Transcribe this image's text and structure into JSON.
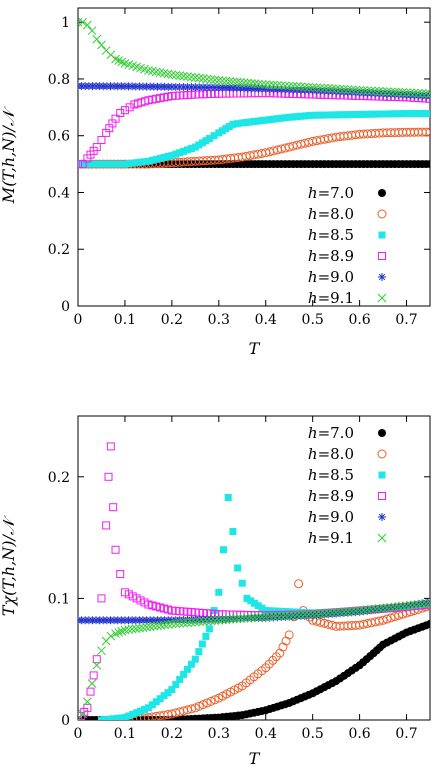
{
  "chart_data": [
    {
      "type": "scatter",
      "xlabel": "T",
      "ylabel": "M(T,h,N)/𝒩",
      "xlim": [
        0,
        0.75
      ],
      "ylim": [
        0,
        1.05
      ],
      "xticks": [
        "0",
        "0.1",
        "0.2",
        "0.3",
        "0.4",
        "0.5",
        "0.6",
        "0.7"
      ],
      "yticks": [
        "0",
        "0.2",
        "0.4",
        "0.6",
        "0.8",
        "1"
      ],
      "xtick_values": [
        0,
        0.1,
        0.2,
        0.3,
        0.4,
        0.5,
        0.6,
        0.7
      ],
      "ytick_values": [
        0,
        0.2,
        0.4,
        0.6,
        0.8,
        1.0
      ],
      "legend_position": "lower-right",
      "series": [
        {
          "name": "h=7.0",
          "h": "h",
          "val": "=7.0",
          "marker": "filled-circle",
          "color": "#000000",
          "points": [
            [
              0,
              0.5
            ],
            [
              0.1,
              0.5
            ],
            [
              0.2,
              0.5
            ],
            [
              0.3,
              0.5
            ],
            [
              0.4,
              0.5
            ],
            [
              0.5,
              0.5
            ],
            [
              0.6,
              0.5
            ],
            [
              0.7,
              0.5
            ],
            [
              0.75,
              0.5
            ]
          ]
        },
        {
          "name": "h=8.0",
          "h": "h",
          "val": "=8.0",
          "marker": "open-circle",
          "color": "#e8602c",
          "points": [
            [
              0,
              0.5
            ],
            [
              0.1,
              0.5
            ],
            [
              0.15,
              0.5
            ],
            [
              0.2,
              0.505
            ],
            [
              0.25,
              0.51
            ],
            [
              0.3,
              0.515
            ],
            [
              0.35,
              0.525
            ],
            [
              0.4,
              0.54
            ],
            [
              0.45,
              0.56
            ],
            [
              0.5,
              0.58
            ],
            [
              0.55,
              0.595
            ],
            [
              0.6,
              0.605
            ],
            [
              0.65,
              0.61
            ],
            [
              0.7,
              0.612
            ],
            [
              0.75,
              0.613
            ]
          ]
        },
        {
          "name": "h=8.5",
          "h": "h",
          "val": "=8.5",
          "marker": "filled-square",
          "color": "#1ce6e6",
          "points": [
            [
              0,
              0.5
            ],
            [
              0.1,
              0.5
            ],
            [
              0.15,
              0.51
            ],
            [
              0.2,
              0.53
            ],
            [
              0.25,
              0.56
            ],
            [
              0.28,
              0.59
            ],
            [
              0.3,
              0.61
            ],
            [
              0.33,
              0.64
            ],
            [
              0.35,
              0.645
            ],
            [
              0.4,
              0.655
            ],
            [
              0.45,
              0.665
            ],
            [
              0.5,
              0.672
            ],
            [
              0.6,
              0.675
            ],
            [
              0.7,
              0.678
            ],
            [
              0.75,
              0.678
            ]
          ]
        },
        {
          "name": "h=8.9",
          "h": "h",
          "val": "=8.9",
          "marker": "open-square",
          "color": "#ee21ee",
          "points": [
            [
              0,
              0.5
            ],
            [
              0.01,
              0.5
            ],
            [
              0.02,
              0.52
            ],
            [
              0.04,
              0.56
            ],
            [
              0.06,
              0.61
            ],
            [
              0.08,
              0.66
            ],
            [
              0.09,
              0.68
            ],
            [
              0.1,
              0.69
            ],
            [
              0.12,
              0.71
            ],
            [
              0.15,
              0.725
            ],
            [
              0.2,
              0.74
            ],
            [
              0.25,
              0.745
            ],
            [
              0.3,
              0.748
            ],
            [
              0.4,
              0.75
            ],
            [
              0.5,
              0.745
            ],
            [
              0.6,
              0.74
            ],
            [
              0.7,
              0.735
            ],
            [
              0.75,
              0.73
            ]
          ]
        },
        {
          "name": "h=9.0",
          "h": "h",
          "val": "=9.0",
          "marker": "asterisk",
          "color": "#2233cc",
          "points": [
            [
              0,
              0.775
            ],
            [
              0.1,
              0.774
            ],
            [
              0.2,
              0.772
            ],
            [
              0.3,
              0.77
            ],
            [
              0.4,
              0.765
            ],
            [
              0.5,
              0.76
            ],
            [
              0.6,
              0.752
            ],
            [
              0.7,
              0.744
            ],
            [
              0.75,
              0.74
            ]
          ]
        },
        {
          "name": "h=9.1",
          "h": "h",
          "val": "=9.1",
          "marker": "cross",
          "color": "#33cc33",
          "points": [
            [
              0,
              1.0
            ],
            [
              0.01,
              1.0
            ],
            [
              0.02,
              0.99
            ],
            [
              0.03,
              0.97
            ],
            [
              0.04,
              0.94
            ],
            [
              0.05,
              0.92
            ],
            [
              0.06,
              0.9
            ],
            [
              0.07,
              0.885
            ],
            [
              0.08,
              0.87
            ],
            [
              0.1,
              0.855
            ],
            [
              0.15,
              0.83
            ],
            [
              0.2,
              0.815
            ],
            [
              0.3,
              0.795
            ],
            [
              0.4,
              0.78
            ],
            [
              0.5,
              0.77
            ],
            [
              0.6,
              0.76
            ],
            [
              0.7,
              0.752
            ],
            [
              0.75,
              0.748
            ]
          ]
        }
      ]
    },
    {
      "type": "scatter",
      "xlabel": "T",
      "ylabel": "Tχ(T,h,N)/𝒩",
      "xlim": [
        0,
        0.75
      ],
      "ylim": [
        0,
        0.25
      ],
      "xticks": [
        "0",
        "0.1",
        "0.2",
        "0.3",
        "0.4",
        "0.5",
        "0.6",
        "0.7"
      ],
      "yticks": [
        "0",
        "0.1",
        "0.2"
      ],
      "xtick_values": [
        0,
        0.1,
        0.2,
        0.3,
        0.4,
        0.5,
        0.6,
        0.7
      ],
      "ytick_values": [
        0,
        0.1,
        0.2
      ],
      "legend_position": "top-right",
      "series": [
        {
          "name": "h=7.0",
          "h": "h",
          "val": "=7.0",
          "marker": "filled-circle",
          "color": "#000000",
          "points": [
            [
              0,
              0
            ],
            [
              0.1,
              0
            ],
            [
              0.2,
              0.0
            ],
            [
              0.3,
              0.002
            ],
            [
              0.35,
              0.004
            ],
            [
              0.4,
              0.008
            ],
            [
              0.45,
              0.014
            ],
            [
              0.5,
              0.022
            ],
            [
              0.55,
              0.032
            ],
            [
              0.6,
              0.045
            ],
            [
              0.63,
              0.055
            ],
            [
              0.65,
              0.062
            ],
            [
              0.7,
              0.072
            ],
            [
              0.75,
              0.079
            ]
          ]
        },
        {
          "name": "h=8.0",
          "h": "h",
          "val": "=8.0",
          "marker": "open-circle",
          "color": "#e8602c",
          "points": [
            [
              0.1,
              0
            ],
            [
              0.15,
              0.002
            ],
            [
              0.2,
              0.005
            ],
            [
              0.25,
              0.01
            ],
            [
              0.3,
              0.018
            ],
            [
              0.35,
              0.028
            ],
            [
              0.4,
              0.043
            ],
            [
              0.43,
              0.055
            ],
            [
              0.45,
              0.07
            ],
            [
              0.46,
              0.085
            ],
            [
              0.47,
              0.112
            ],
            [
              0.48,
              0.09
            ],
            [
              0.5,
              0.082
            ],
            [
              0.55,
              0.077
            ],
            [
              0.6,
              0.078
            ],
            [
              0.65,
              0.082
            ],
            [
              0.7,
              0.088
            ],
            [
              0.75,
              0.094
            ]
          ]
        },
        {
          "name": "h=8.5",
          "h": "h",
          "val": "=8.5",
          "marker": "filled-square",
          "color": "#1ce6e6",
          "points": [
            [
              0.05,
              0
            ],
            [
              0.1,
              0.002
            ],
            [
              0.15,
              0.01
            ],
            [
              0.2,
              0.025
            ],
            [
              0.25,
              0.05
            ],
            [
              0.28,
              0.075
            ],
            [
              0.3,
              0.105
            ],
            [
              0.31,
              0.14
            ],
            [
              0.32,
              0.183
            ],
            [
              0.33,
              0.155
            ],
            [
              0.34,
              0.125
            ],
            [
              0.36,
              0.1
            ],
            [
              0.4,
              0.09
            ],
            [
              0.5,
              0.088
            ],
            [
              0.6,
              0.09
            ],
            [
              0.7,
              0.093
            ],
            [
              0.75,
              0.095
            ]
          ]
        },
        {
          "name": "h=8.9",
          "h": "h",
          "val": "=8.9",
          "marker": "open-square",
          "color": "#ee21ee",
          "points": [
            [
              0,
              0
            ],
            [
              0.02,
              0.01
            ],
            [
              0.04,
              0.05
            ],
            [
              0.05,
              0.1
            ],
            [
              0.06,
              0.16
            ],
            [
              0.065,
              0.2
            ],
            [
              0.07,
              0.225
            ],
            [
              0.075,
              0.175
            ],
            [
              0.08,
              0.14
            ],
            [
              0.09,
              0.12
            ],
            [
              0.1,
              0.105
            ],
            [
              0.15,
              0.095
            ],
            [
              0.2,
              0.09
            ],
            [
              0.3,
              0.087
            ],
            [
              0.4,
              0.086
            ],
            [
              0.5,
              0.087
            ],
            [
              0.6,
              0.09
            ],
            [
              0.7,
              0.093
            ],
            [
              0.75,
              0.095
            ]
          ]
        },
        {
          "name": "h=9.0",
          "h": "h",
          "val": "=9.0",
          "marker": "asterisk",
          "color": "#2233cc",
          "points": [
            [
              0,
              0.082
            ],
            [
              0.1,
              0.082
            ],
            [
              0.2,
              0.082
            ],
            [
              0.3,
              0.083
            ],
            [
              0.4,
              0.084
            ],
            [
              0.5,
              0.086
            ],
            [
              0.6,
              0.089
            ],
            [
              0.7,
              0.094
            ],
            [
              0.75,
              0.097
            ]
          ]
        },
        {
          "name": "h=9.1",
          "h": "h",
          "val": "=9.1",
          "marker": "cross",
          "color": "#33cc33",
          "points": [
            [
              0,
              0
            ],
            [
              0.01,
              0.005
            ],
            [
              0.02,
              0.015
            ],
            [
              0.03,
              0.03
            ],
            [
              0.04,
              0.045
            ],
            [
              0.05,
              0.057
            ],
            [
              0.06,
              0.065
            ],
            [
              0.07,
              0.069
            ],
            [
              0.08,
              0.071
            ],
            [
              0.1,
              0.074
            ],
            [
              0.2,
              0.079
            ],
            [
              0.3,
              0.082
            ],
            [
              0.4,
              0.085
            ],
            [
              0.5,
              0.087
            ],
            [
              0.6,
              0.09
            ],
            [
              0.7,
              0.094
            ],
            [
              0.75,
              0.096
            ]
          ]
        }
      ]
    }
  ]
}
